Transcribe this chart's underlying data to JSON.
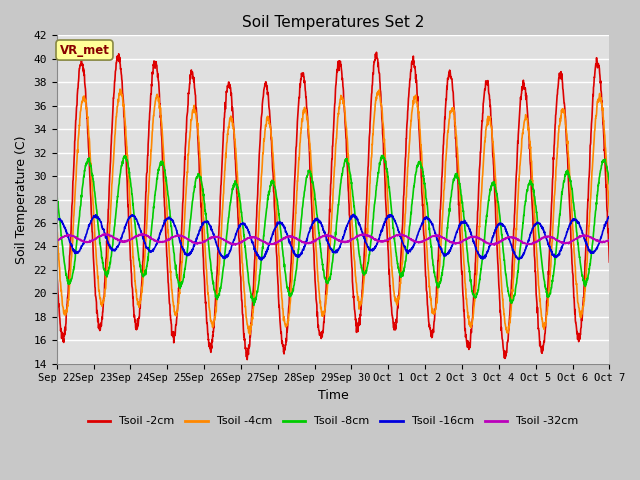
{
  "title": "Soil Temperatures Set 2",
  "xlabel": "Time",
  "ylabel": "Soil Temperature (C)",
  "ylim": [
    14,
    42
  ],
  "yticks": [
    14,
    16,
    18,
    20,
    22,
    24,
    26,
    28,
    30,
    32,
    34,
    36,
    38,
    40,
    42
  ],
  "plot_bg_color": "#e0e0e0",
  "fig_bg_color": "#c8c8c8",
  "grid_color": "#ffffff",
  "series": [
    {
      "label": "Tsoil -2cm",
      "color": "#dd0000",
      "lw": 1.2
    },
    {
      "label": "Tsoil -4cm",
      "color": "#ff8800",
      "lw": 1.2
    },
    {
      "label": "Tsoil -8cm",
      "color": "#00cc00",
      "lw": 1.2
    },
    {
      "label": "Tsoil -16cm",
      "color": "#0000dd",
      "lw": 1.2
    },
    {
      "label": "Tsoil -32cm",
      "color": "#bb00bb",
      "lw": 1.2
    }
  ],
  "annotation": "VR_met",
  "annotation_color": "#880000",
  "annotation_bg": "#ffff99",
  "n_days": 15,
  "ppd": 144,
  "mean_2cm": 27.5,
  "amp_2cm": 11.5,
  "lag_2cm": 0.0,
  "mean_4cm": 27.0,
  "amp_4cm": 9.0,
  "lag_4cm": 0.06,
  "mean_8cm": 25.5,
  "amp_8cm": 5.0,
  "lag_8cm": 0.18,
  "mean_16cm": 24.8,
  "amp_16cm": 1.5,
  "lag_16cm": 0.38,
  "mean_32cm": 24.6,
  "amp_32cm": 0.3,
  "lag_32cm": 0.65,
  "multi_amp": 1.2,
  "multi_period": 7.0
}
